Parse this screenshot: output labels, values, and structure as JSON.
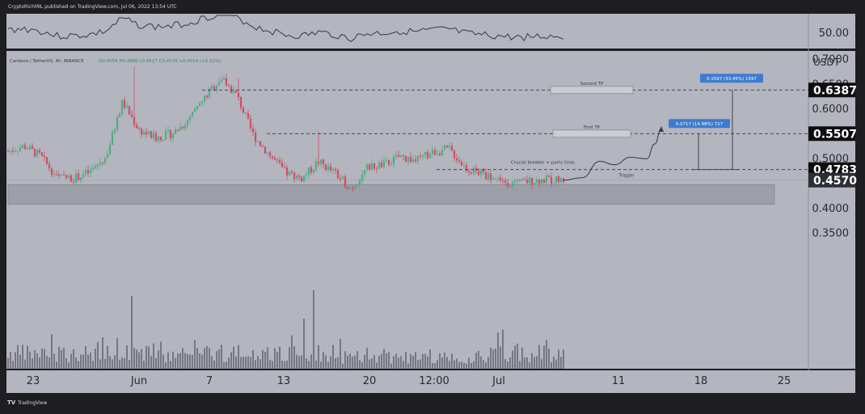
{
  "header": {
    "published": "CryptoRichMIL published on TradingView.com, Jul 06, 2022 13:54 UTC",
    "symbol_line": "Cardano / TetherUS, 4h, BINANCE",
    "ohlc": "O0.4556 H0.4680 L0.4527 C0.4570 +0.0014 (+0.31%)"
  },
  "footer": {
    "brand": "TradingView"
  },
  "oscillator": {
    "level_label": "50.00"
  },
  "axis": {
    "currency": "USDT",
    "price_ticks": [
      "0.7000",
      "0.6500",
      "0.6000",
      "0.5500",
      "0.5000",
      "0.4500",
      "0.4000",
      "0.3500"
    ],
    "time_ticks": [
      "23",
      "Jun",
      "7",
      "13",
      "20",
      "12:00",
      "Jul",
      "11",
      "18",
      "25"
    ]
  },
  "annotations": {
    "second_tp": "Second TP",
    "first_tp": "First TP",
    "crucial": "Crucial breaker = party time.",
    "trigger": "Trigger",
    "measure_first": "0.0717 (14.98%) 717",
    "measure_second": "0.1597 (33.45%) 1597"
  },
  "levels": [
    {
      "label": "0.6387",
      "style": "dark"
    },
    {
      "label": "0.5507",
      "style": "dark"
    },
    {
      "label": "0.4783",
      "style": "dark"
    },
    {
      "label": "0.4570",
      "style": "current"
    }
  ],
  "colors": {
    "background": "#b3b5bf",
    "up": "#4fae84",
    "down": "#cf4f62",
    "measure": "#3e7bd0",
    "support_zone": "#9c9ea8",
    "frame": "#1e1e22"
  },
  "chart_data": {
    "type": "candlestick",
    "title": "Cardano / TetherUS, 4h, BINANCE",
    "ylabel": "USDT",
    "ylim": [
      0.31,
      0.75
    ],
    "x": [
      "May 23",
      "Jun 1",
      "Jun 7",
      "Jun 13",
      "Jun 20",
      "Jun 26",
      "Jul 1",
      "Jul 6"
    ],
    "close_path": [
      0.515,
      0.526,
      0.505,
      0.462,
      0.461,
      0.473,
      0.504,
      0.615,
      0.559,
      0.542,
      0.55,
      0.575,
      0.621,
      0.663,
      0.628,
      0.548,
      0.508,
      0.471,
      0.461,
      0.494,
      0.471,
      0.44,
      0.482,
      0.488,
      0.505,
      0.496,
      0.513,
      0.52,
      0.482,
      0.469,
      0.46,
      0.448,
      0.456,
      0.458,
      0.457
    ],
    "price_levels": [
      0.6387,
      0.5507,
      0.4783,
      0.457
    ],
    "support_zone": [
      0.408,
      0.448
    ],
    "projection": [
      0.457,
      0.462,
      0.495,
      0.488,
      0.503,
      0.5,
      0.53,
      0.561
    ],
    "targets": [
      {
        "label": "First TP",
        "price": 0.5507,
        "change": "0.0717 (14.98%) 717"
      },
      {
        "label": "Second TP",
        "price": 0.6387,
        "change": "0.1597 (33.45%) 1597"
      }
    ]
  }
}
